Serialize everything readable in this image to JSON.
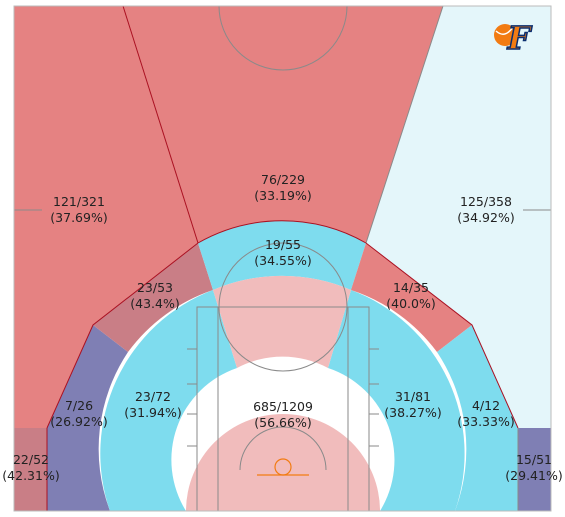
{
  "colors": {
    "hot": "#e58282",
    "warm": "#c97e86",
    "cold": "#7edcee",
    "very_cold": "#7f7fb4",
    "ice": "#e4f6fa",
    "paint": "#f1bcbc",
    "line": "#8a8a8a",
    "border": "#aa1122",
    "logo_blue": "#0a2d6e",
    "logo_orange": "#f27b12"
  },
  "logo": {
    "letter": "F",
    "icon": "fever-logo-icon"
  },
  "chart_data": {
    "type": "shot-chart",
    "zones": [
      {
        "id": "restricted-area",
        "made": 685,
        "attempts": 1209,
        "made_attempts": "685/1209",
        "pct": "(56.66%)",
        "color": "paint"
      },
      {
        "id": "paint-left",
        "made": 23,
        "attempts": 72,
        "made_attempts": "23/72",
        "pct": "(31.94%)",
        "color": "cold"
      },
      {
        "id": "paint-right",
        "made": 31,
        "attempts": 81,
        "made_attempts": "31/81",
        "pct": "(38.27%)",
        "color": "cold"
      },
      {
        "id": "top-key",
        "made": 19,
        "attempts": 55,
        "made_attempts": "19/55",
        "pct": "(34.55%)",
        "color": "cold"
      },
      {
        "id": "mid-left-wing",
        "made": 23,
        "attempts": 53,
        "made_attempts": "23/53",
        "pct": "(43.4%)",
        "color": "warm"
      },
      {
        "id": "mid-right-wing",
        "made": 14,
        "attempts": 35,
        "made_attempts": "14/35",
        "pct": "(40.0%)",
        "color": "hot"
      },
      {
        "id": "mid-left-baseline",
        "made": 7,
        "attempts": 26,
        "made_attempts": "7/26",
        "pct": "(26.92%)",
        "color": "very_cold"
      },
      {
        "id": "mid-right-baseline",
        "made": 4,
        "attempts": 12,
        "made_attempts": "4/12",
        "pct": "(33.33%)",
        "color": "cold"
      },
      {
        "id": "three-left-wing",
        "made": 121,
        "attempts": 321,
        "made_attempts": "121/321",
        "pct": "(37.69%)",
        "color": "hot"
      },
      {
        "id": "three-top",
        "made": 76,
        "attempts": 229,
        "made_attempts": "76/229",
        "pct": "(33.19%)",
        "color": "hot"
      },
      {
        "id": "three-right-wing",
        "made": 125,
        "attempts": 358,
        "made_attempts": "125/358",
        "pct": "(34.92%)",
        "color": "ice"
      },
      {
        "id": "left-corner-three",
        "made": 22,
        "attempts": 52,
        "made_attempts": "22/52",
        "pct": "(42.31%)",
        "color": "warm"
      },
      {
        "id": "right-corner-three",
        "made": 15,
        "attempts": 51,
        "made_attempts": "15/51",
        "pct": "(29.41%)",
        "color": "very_cold"
      }
    ]
  }
}
